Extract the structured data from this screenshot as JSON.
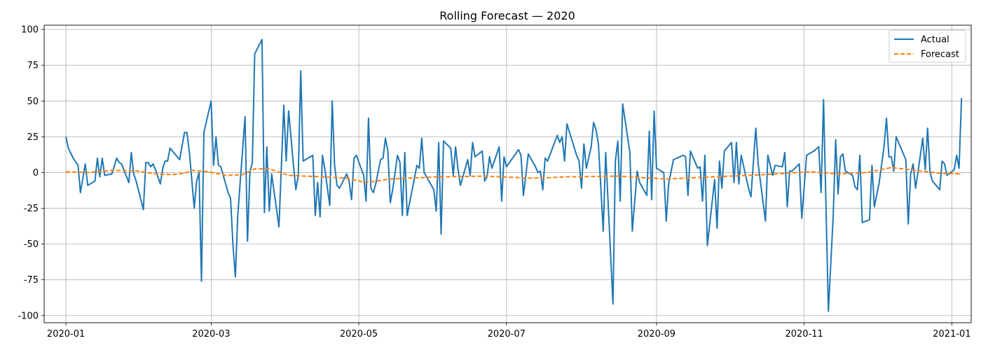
{
  "chart_data": {
    "type": "line",
    "title": "Rolling Forecast — 2020",
    "xlabel": "",
    "ylabel": "",
    "x_range": [
      "2019-12-23",
      "2021-01-09"
    ],
    "ylim": [
      -105,
      103
    ],
    "x_ticks": [
      "2020-01",
      "2020-03",
      "2020-05",
      "2020-07",
      "2020-09",
      "2020-11",
      "2021-01"
    ],
    "y_ticks": [
      100,
      75,
      50,
      25,
      0,
      -25,
      -50,
      -75,
      -100
    ],
    "grid": true,
    "legend": "top-right",
    "series": [
      {
        "name": "Actual",
        "color": "#1f77b4",
        "style": "solid",
        "points": [
          [
            "2020-01-01",
            25
          ],
          [
            "2020-01-02",
            17
          ],
          [
            "2020-01-04",
            10
          ],
          [
            "2020-01-06",
            5
          ],
          [
            "2020-01-07",
            -14
          ],
          [
            "2020-01-09",
            6
          ],
          [
            "2020-01-10",
            -9
          ],
          [
            "2020-01-13",
            -6
          ],
          [
            "2020-01-14",
            10
          ],
          [
            "2020-01-15",
            -3
          ],
          [
            "2020-01-16",
            10
          ],
          [
            "2020-01-17",
            -2
          ],
          [
            "2020-01-20",
            -1
          ],
          [
            "2020-01-22",
            10
          ],
          [
            "2020-01-23",
            7
          ],
          [
            "2020-01-24",
            6
          ],
          [
            "2020-01-27",
            -7
          ],
          [
            "2020-01-28",
            14
          ],
          [
            "2020-01-29",
            -1
          ],
          [
            "2020-01-30",
            -6
          ],
          [
            "2020-02-02",
            -26
          ],
          [
            "2020-02-03",
            7
          ],
          [
            "2020-02-04",
            7
          ],
          [
            "2020-02-05",
            4
          ],
          [
            "2020-02-06",
            6
          ],
          [
            "2020-02-07",
            2
          ],
          [
            "2020-02-09",
            -8
          ],
          [
            "2020-02-10",
            3
          ],
          [
            "2020-02-11",
            8
          ],
          [
            "2020-02-12",
            8
          ],
          [
            "2020-02-13",
            17
          ],
          [
            "2020-02-17",
            9
          ],
          [
            "2020-02-19",
            28
          ],
          [
            "2020-02-20",
            28
          ],
          [
            "2020-02-21",
            14
          ],
          [
            "2020-02-23",
            -25
          ],
          [
            "2020-02-24",
            -6
          ],
          [
            "2020-02-25",
            0
          ],
          [
            "2020-02-26",
            -76
          ],
          [
            "2020-02-27",
            28
          ],
          [
            "2020-03-01",
            50
          ],
          [
            "2020-03-02",
            5
          ],
          [
            "2020-03-03",
            25
          ],
          [
            "2020-03-04",
            5
          ],
          [
            "2020-03-05",
            4
          ],
          [
            "2020-03-08",
            -14
          ],
          [
            "2020-03-09",
            -18
          ],
          [
            "2020-03-10",
            -50
          ],
          [
            "2020-03-11",
            -73
          ],
          [
            "2020-03-12",
            -30
          ],
          [
            "2020-03-15",
            39
          ],
          [
            "2020-03-16",
            -48
          ],
          [
            "2020-03-17",
            0
          ],
          [
            "2020-03-18",
            7
          ],
          [
            "2020-03-19",
            83
          ],
          [
            "2020-03-22",
            93
          ],
          [
            "2020-03-23",
            -28
          ],
          [
            "2020-03-24",
            18
          ],
          [
            "2020-03-25",
            -27
          ],
          [
            "2020-03-26",
            -1
          ],
          [
            "2020-03-29",
            -38
          ],
          [
            "2020-03-31",
            47
          ],
          [
            "2020-04-01",
            8
          ],
          [
            "2020-04-02",
            43
          ],
          [
            "2020-04-04",
            5
          ],
          [
            "2020-04-05",
            -12
          ],
          [
            "2020-04-06",
            -2
          ],
          [
            "2020-04-07",
            71
          ],
          [
            "2020-04-08",
            8
          ],
          [
            "2020-04-12",
            12
          ],
          [
            "2020-04-13",
            -30
          ],
          [
            "2020-04-14",
            -7
          ],
          [
            "2020-04-15",
            -31
          ],
          [
            "2020-04-16",
            12
          ],
          [
            "2020-04-17",
            2
          ],
          [
            "2020-04-19",
            -23
          ],
          [
            "2020-04-20",
            50
          ],
          [
            "2020-04-21",
            5
          ],
          [
            "2020-04-22",
            -9
          ],
          [
            "2020-04-23",
            -11
          ],
          [
            "2020-04-26",
            -1
          ],
          [
            "2020-04-27",
            -6
          ],
          [
            "2020-04-28",
            -19
          ],
          [
            "2020-04-29",
            10
          ],
          [
            "2020-04-30",
            12
          ],
          [
            "2020-05-03",
            -2
          ],
          [
            "2020-05-04",
            -20
          ],
          [
            "2020-05-05",
            38
          ],
          [
            "2020-05-06",
            -11
          ],
          [
            "2020-05-07",
            -14
          ],
          [
            "2020-05-08",
            -8
          ],
          [
            "2020-05-10",
            9
          ],
          [
            "2020-05-11",
            10
          ],
          [
            "2020-05-12",
            24
          ],
          [
            "2020-05-13",
            15
          ],
          [
            "2020-05-14",
            -21
          ],
          [
            "2020-05-15",
            -12
          ],
          [
            "2020-05-17",
            12
          ],
          [
            "2020-05-18",
            7
          ],
          [
            "2020-05-19",
            -30
          ],
          [
            "2020-05-20",
            14
          ],
          [
            "2020-05-21",
            -30
          ],
          [
            "2020-05-22",
            -21
          ],
          [
            "2020-05-25",
            5
          ],
          [
            "2020-05-26",
            3
          ],
          [
            "2020-05-27",
            24
          ],
          [
            "2020-05-28",
            0
          ],
          [
            "2020-05-29",
            -3
          ],
          [
            "2020-06-01",
            -12
          ],
          [
            "2020-06-02",
            -27
          ],
          [
            "2020-06-03",
            21
          ],
          [
            "2020-06-04",
            -43
          ],
          [
            "2020-06-05",
            22
          ],
          [
            "2020-06-08",
            17
          ],
          [
            "2020-06-09",
            -2
          ],
          [
            "2020-06-10",
            18
          ],
          [
            "2020-06-11",
            2
          ],
          [
            "2020-06-12",
            -9
          ],
          [
            "2020-06-15",
            9
          ],
          [
            "2020-06-16",
            -2
          ],
          [
            "2020-06-17",
            21
          ],
          [
            "2020-06-18",
            11
          ],
          [
            "2020-06-21",
            15
          ],
          [
            "2020-06-22",
            -6
          ],
          [
            "2020-06-23",
            -3
          ],
          [
            "2020-06-24",
            11
          ],
          [
            "2020-06-25",
            3
          ],
          [
            "2020-06-28",
            18
          ],
          [
            "2020-06-29",
            -20
          ],
          [
            "2020-06-30",
            11
          ],
          [
            "2020-07-01",
            4
          ],
          [
            "2020-07-06",
            16
          ],
          [
            "2020-07-07",
            12
          ],
          [
            "2020-07-08",
            -16
          ],
          [
            "2020-07-09",
            -2
          ],
          [
            "2020-07-10",
            13
          ],
          [
            "2020-07-13",
            4
          ],
          [
            "2020-07-14",
            0
          ],
          [
            "2020-07-15",
            1
          ],
          [
            "2020-07-16",
            -12
          ],
          [
            "2020-07-17",
            10
          ],
          [
            "2020-07-18",
            8
          ],
          [
            "2020-07-22",
            26
          ],
          [
            "2020-07-23",
            21
          ],
          [
            "2020-07-24",
            25
          ],
          [
            "2020-07-25",
            8
          ],
          [
            "2020-07-26",
            34
          ],
          [
            "2020-07-30",
            12
          ],
          [
            "2020-07-31",
            8
          ],
          [
            "2020-08-01",
            -11
          ],
          [
            "2020-08-02",
            20
          ],
          [
            "2020-08-03",
            3
          ],
          [
            "2020-08-05",
            18
          ],
          [
            "2020-08-06",
            35
          ],
          [
            "2020-08-07",
            30
          ],
          [
            "2020-08-08",
            20
          ],
          [
            "2020-08-10",
            -41
          ],
          [
            "2020-08-11",
            14
          ],
          [
            "2020-08-14",
            -92
          ],
          [
            "2020-08-15",
            8
          ],
          [
            "2020-08-16",
            22
          ],
          [
            "2020-08-17",
            -20
          ],
          [
            "2020-08-18",
            48
          ],
          [
            "2020-08-21",
            14
          ],
          [
            "2020-08-22",
            -41
          ],
          [
            "2020-08-24",
            1
          ],
          [
            "2020-08-25",
            -7
          ],
          [
            "2020-08-28",
            -16
          ],
          [
            "2020-08-29",
            29
          ],
          [
            "2020-08-30",
            -19
          ],
          [
            "2020-08-31",
            43
          ],
          [
            "2020-09-01",
            3
          ],
          [
            "2020-09-04",
            0
          ],
          [
            "2020-09-05",
            -34
          ],
          [
            "2020-09-06",
            -8
          ],
          [
            "2020-09-08",
            9
          ],
          [
            "2020-09-12",
            12
          ],
          [
            "2020-09-13",
            11
          ],
          [
            "2020-09-14",
            -16
          ],
          [
            "2020-09-15",
            15
          ],
          [
            "2020-09-18",
            3
          ],
          [
            "2020-09-19",
            4
          ],
          [
            "2020-09-20",
            -20
          ],
          [
            "2020-09-21",
            12
          ],
          [
            "2020-09-22",
            -51
          ],
          [
            "2020-09-25",
            -5
          ],
          [
            "2020-09-26",
            -39
          ],
          [
            "2020-09-27",
            8
          ],
          [
            "2020-09-28",
            -11
          ],
          [
            "2020-09-29",
            15
          ],
          [
            "2020-10-02",
            21
          ],
          [
            "2020-10-03",
            -7
          ],
          [
            "2020-10-04",
            21
          ],
          [
            "2020-10-05",
            -8
          ],
          [
            "2020-10-06",
            12
          ],
          [
            "2020-10-09",
            -11
          ],
          [
            "2020-10-10",
            -17
          ],
          [
            "2020-10-12",
            31
          ],
          [
            "2020-10-13",
            6
          ],
          [
            "2020-10-16",
            -34
          ],
          [
            "2020-10-17",
            12
          ],
          [
            "2020-10-19",
            -2
          ],
          [
            "2020-10-20",
            5
          ],
          [
            "2020-10-23",
            4
          ],
          [
            "2020-10-24",
            14
          ],
          [
            "2020-10-25",
            -24
          ],
          [
            "2020-10-26",
            1
          ],
          [
            "2020-10-27",
            1
          ],
          [
            "2020-10-30",
            6
          ],
          [
            "2020-10-31",
            -32
          ],
          [
            "2020-11-02",
            12
          ],
          [
            "2020-11-05",
            15
          ],
          [
            "2020-11-07",
            18
          ],
          [
            "2020-11-08",
            -14
          ],
          [
            "2020-11-09",
            51
          ],
          [
            "2020-11-11",
            -97
          ],
          [
            "2020-11-13",
            -30
          ],
          [
            "2020-11-14",
            23
          ],
          [
            "2020-11-15",
            -15
          ],
          [
            "2020-11-16",
            11
          ],
          [
            "2020-11-17",
            13
          ],
          [
            "2020-11-18",
            1
          ],
          [
            "2020-11-21",
            -2
          ],
          [
            "2020-11-22",
            -10
          ],
          [
            "2020-11-23",
            -12
          ],
          [
            "2020-11-24",
            12
          ],
          [
            "2020-11-25",
            -35
          ],
          [
            "2020-11-28",
            -33
          ],
          [
            "2020-11-29",
            5
          ],
          [
            "2020-11-30",
            -24
          ],
          [
            "2020-12-02",
            -7
          ],
          [
            "2020-12-04",
            18
          ],
          [
            "2020-12-05",
            38
          ],
          [
            "2020-12-06",
            11
          ],
          [
            "2020-12-07",
            11
          ],
          [
            "2020-12-08",
            1
          ],
          [
            "2020-12-09",
            25
          ],
          [
            "2020-12-13",
            9
          ],
          [
            "2020-12-14",
            -36
          ],
          [
            "2020-12-15",
            -1
          ],
          [
            "2020-12-16",
            6
          ],
          [
            "2020-12-17",
            -11
          ],
          [
            "2020-12-18",
            0
          ],
          [
            "2020-12-20",
            24
          ],
          [
            "2020-12-21",
            2
          ],
          [
            "2020-12-22",
            31
          ],
          [
            "2020-12-23",
            0
          ],
          [
            "2020-12-24",
            -6
          ],
          [
            "2020-12-27",
            -12
          ],
          [
            "2020-12-28",
            8
          ],
          [
            "2020-12-29",
            6
          ],
          [
            "2020-12-30",
            -2
          ],
          [
            "2021-01-02",
            2
          ],
          [
            "2021-01-03",
            12
          ],
          [
            "2021-01-04",
            3
          ],
          [
            "2021-01-05",
            52
          ]
        ]
      },
      {
        "name": "Forecast",
        "color": "#ff7f0e",
        "style": "dashed",
        "points": [
          [
            "2020-01-01",
            0.5
          ],
          [
            "2020-01-10",
            0
          ],
          [
            "2020-01-20",
            1.5
          ],
          [
            "2020-01-31",
            1
          ],
          [
            "2020-02-07",
            -1
          ],
          [
            "2020-02-14",
            -1.5
          ],
          [
            "2020-02-19",
            -0.5
          ],
          [
            "2020-02-22",
            1.5
          ],
          [
            "2020-02-29",
            0.5
          ],
          [
            "2020-03-07",
            -2
          ],
          [
            "2020-03-14",
            -1.5
          ],
          [
            "2020-03-19",
            2.5
          ],
          [
            "2020-03-25",
            2.5
          ],
          [
            "2020-04-02",
            -2
          ],
          [
            "2020-04-16",
            -3
          ],
          [
            "2020-04-26",
            -4
          ],
          [
            "2020-05-04",
            -7
          ],
          [
            "2020-05-14",
            -4.5
          ],
          [
            "2020-06-03",
            -3
          ],
          [
            "2020-06-22",
            -2.5
          ],
          [
            "2020-07-12",
            -4
          ],
          [
            "2020-07-27",
            -3
          ],
          [
            "2020-08-16",
            -2.5
          ],
          [
            "2020-09-05",
            -4.5
          ],
          [
            "2020-09-25",
            -3
          ],
          [
            "2020-10-15",
            -1.5
          ],
          [
            "2020-11-04",
            0.5
          ],
          [
            "2020-11-14",
            -1
          ],
          [
            "2020-11-27",
            0
          ],
          [
            "2020-12-07",
            3.5
          ],
          [
            "2020-12-17",
            1.5
          ],
          [
            "2020-12-27",
            -0.5
          ],
          [
            "2021-01-05",
            -1
          ]
        ]
      }
    ]
  }
}
